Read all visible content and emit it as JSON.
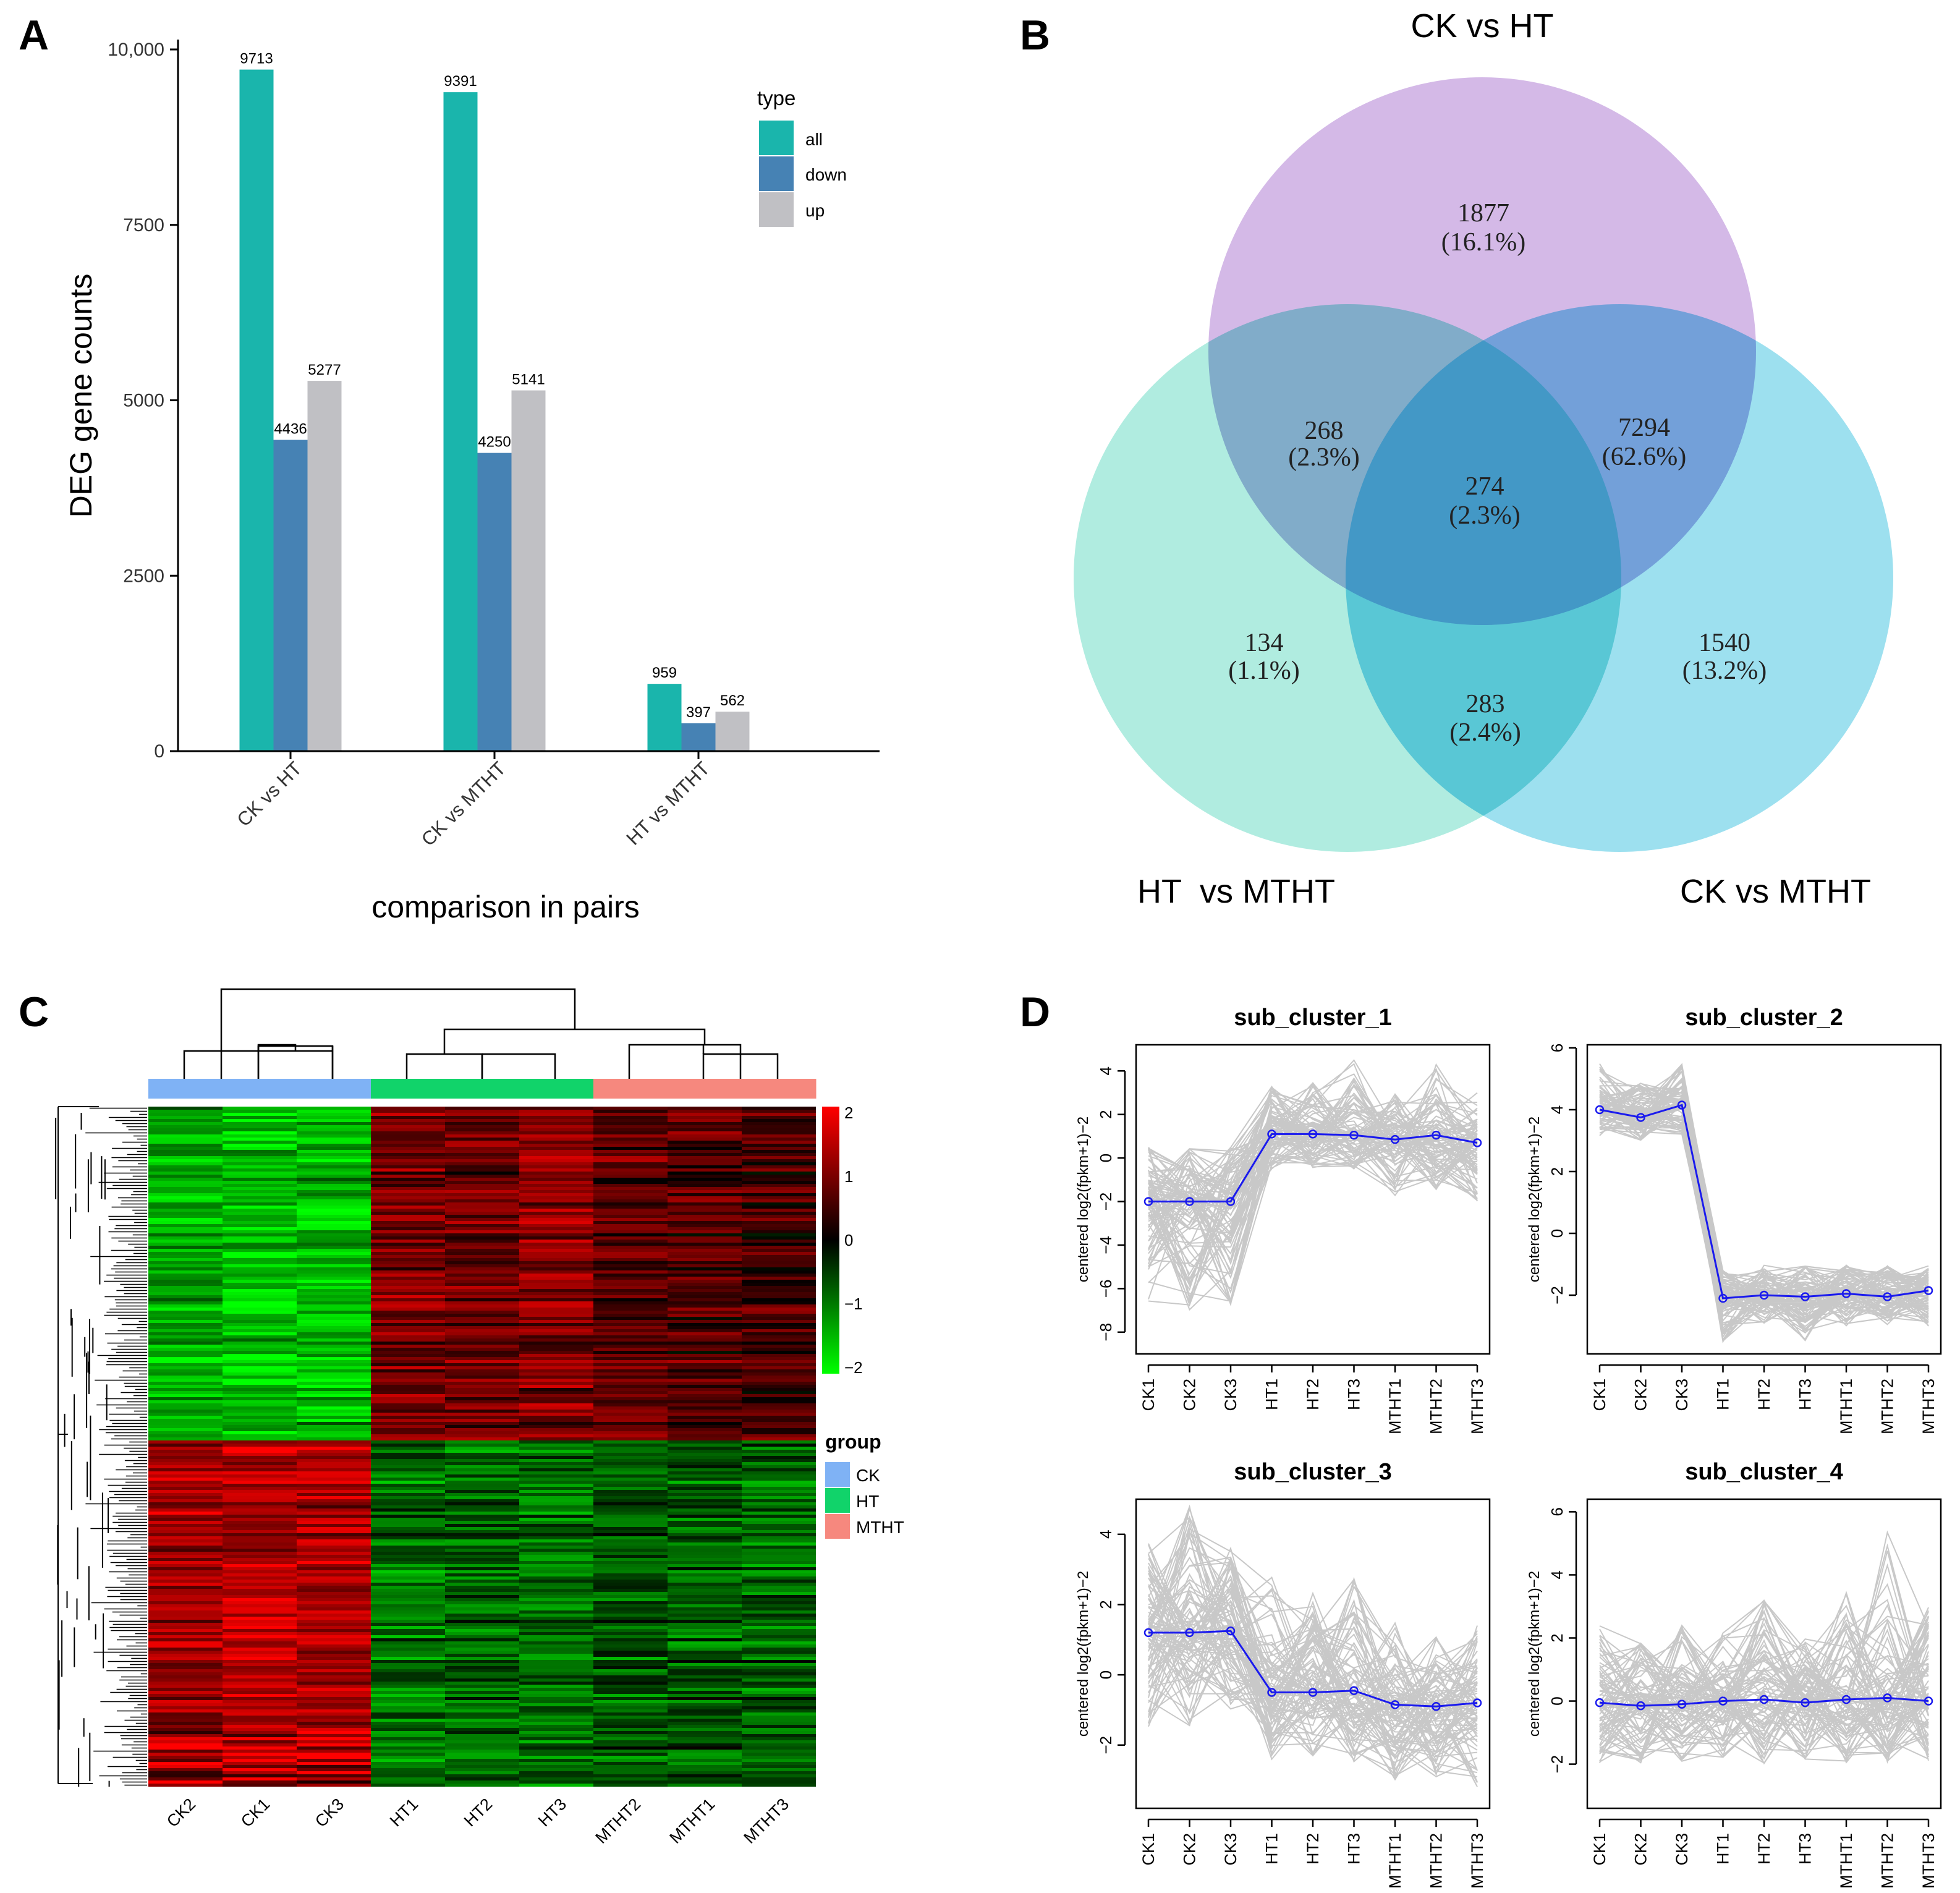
{
  "panels": {
    "a": "A",
    "b": "B",
    "c": "C",
    "d": "D"
  },
  "colors": {
    "all": "#1ab5ac",
    "down": "#4682b4",
    "up": "#c0c0c4",
    "ck_circle": "#b07fd3",
    "ht_mtht_circle": "#6fddc6",
    "ck_mtht_circle": "#4dc6e2",
    "ck": "#7fb2f5",
    "ht": "#11d36a",
    "mtht": "#f6887e",
    "mean_line": "#1a1aee",
    "profile": "#c8c8c8"
  },
  "chart_data": [
    {
      "type": "bar",
      "panel": "A",
      "title": "",
      "xlabel": "comparison in pairs",
      "ylabel": "DEG gene counts",
      "categories": [
        "CK vs HT",
        "CK vs MTHT",
        "HT vs MTHT"
      ],
      "series": [
        {
          "name": "all",
          "values": [
            9713,
            9391,
            959
          ]
        },
        {
          "name": "down",
          "values": [
            4436,
            4250,
            397
          ]
        },
        {
          "name": "up",
          "values": [
            5277,
            5141,
            562
          ]
        }
      ],
      "ylim": [
        0,
        10000
      ],
      "yticks": [
        0,
        2500,
        5000,
        7500,
        10000
      ],
      "ytick_labels": [
        "0",
        "2500",
        "5000",
        "7500",
        "10,000"
      ],
      "legend_title": "type",
      "legend": "top-right",
      "grid": false
    },
    {
      "type": "venn",
      "panel": "B",
      "sets": [
        "CK vs HT",
        "HT  vs MTHT",
        "CK vs MTHT"
      ],
      "regions": [
        {
          "id": "ck_ht_only",
          "count": "1877",
          "pct": "(16.1%)"
        },
        {
          "id": "ck_ht_and_ht_mtht",
          "count": "268",
          "pct": "(2.3%)"
        },
        {
          "id": "ck_ht_and_ck_mtht",
          "count": "7294",
          "pct": "(62.6%)"
        },
        {
          "id": "all_three",
          "count": "274",
          "pct": "(2.3%)"
        },
        {
          "id": "ht_mtht_only",
          "count": "134",
          "pct": "(1.1%)"
        },
        {
          "id": "ck_mtht_only",
          "count": "1540",
          "pct": "(13.2%)"
        },
        {
          "id": "ht_mtht_and_ck_mtht",
          "count": "283",
          "pct": "(2.4%)"
        }
      ]
    },
    {
      "type": "heatmap",
      "panel": "C",
      "columns": [
        "CK2",
        "CK1",
        "CK3",
        "HT1",
        "HT2",
        "HT3",
        "MTHT2",
        "MTHT1",
        "MTHT3"
      ],
      "column_groups": [
        "CK",
        "CK",
        "CK",
        "HT",
        "HT",
        "HT",
        "MTHT",
        "MTHT",
        "MTHT"
      ],
      "scale_ticks": [
        2,
        1,
        0,
        -1,
        -2
      ],
      "scale_labels": [
        "2",
        "1",
        "0",
        "−1",
        "−2"
      ],
      "group_legend_title": "group",
      "groups": [
        "CK",
        "HT",
        "MTHT"
      ],
      "row_blocks": [
        {
          "rows": "top",
          "values": [
            -1.3,
            -1.5,
            -1.4,
            0.9,
            0.8,
            1.0,
            0.7,
            0.6,
            0.5
          ]
        },
        {
          "rows": "bottom",
          "values": [
            1.2,
            1.4,
            1.3,
            -0.9,
            -0.8,
            -0.9,
            -0.7,
            -0.7,
            -0.8
          ]
        }
      ]
    },
    {
      "type": "line",
      "panel": "D",
      "ylabel": "centered log2(fpkm+1)−2",
      "x": [
        "CK1",
        "CK2",
        "CK3",
        "HT1",
        "HT2",
        "HT3",
        "MTHT1",
        "MTHT2",
        "MTHT3"
      ],
      "plots": [
        {
          "title": "sub_cluster_1",
          "mean": [
            -2.0,
            -2.0,
            -2.0,
            1.1,
            1.1,
            1.05,
            0.85,
            1.05,
            0.7
          ],
          "ylim": [
            -9.0,
            5.2
          ],
          "yticks": [
            4,
            2,
            0,
            -2,
            -4,
            -6,
            -8
          ],
          "ytick_labels": [
            "4",
            "2",
            "0",
            "−2",
            "−4",
            "−6",
            "−8"
          ],
          "spread": [
            [
              -7,
              0.5
            ],
            [
              -7,
              0.5
            ],
            [
              -7,
              0.5
            ],
            [
              -0.5,
              3.5
            ],
            [
              -0.5,
              3.5
            ],
            [
              -0.5,
              4.5
            ],
            [
              -2,
              3
            ],
            [
              -1.5,
              4.5
            ],
            [
              -2,
              3
            ]
          ]
        },
        {
          "title": "sub_cluster_2",
          "mean": [
            4.0,
            3.75,
            4.15,
            -2.1,
            -2.0,
            -2.05,
            -1.95,
            -2.05,
            -1.85
          ],
          "ylim": [
            -3.9,
            6.1
          ],
          "yticks": [
            6,
            4,
            2,
            0,
            -2
          ],
          "ytick_labels": [
            "6",
            "4",
            "2",
            "0",
            "−2"
          ],
          "spread": [
            [
              3.0,
              5.5
            ],
            [
              3.0,
              5.2
            ],
            [
              3.2,
              5.5
            ],
            [
              -3.5,
              -1.2
            ],
            [
              -3.0,
              -1.0
            ],
            [
              -3.5,
              -1.0
            ],
            [
              -3.0,
              -1.0
            ],
            [
              -3.0,
              -1.0
            ],
            [
              -3.0,
              -1.0
            ]
          ]
        },
        {
          "title": "sub_cluster_3",
          "mean": [
            1.2,
            1.2,
            1.25,
            -0.5,
            -0.5,
            -0.45,
            -0.85,
            -0.9,
            -0.8
          ],
          "ylim": [
            -3.8,
            5.0
          ],
          "yticks": [
            4,
            2,
            0,
            -2
          ],
          "ytick_labels": [
            "4",
            "2",
            "0",
            "−2"
          ],
          "spread": [
            [
              -1.5,
              3.8
            ],
            [
              -1.5,
              4.8
            ],
            [
              -1.0,
              3.8
            ],
            [
              -2.5,
              2.8
            ],
            [
              -2.5,
              2.5
            ],
            [
              -2.5,
              2.8
            ],
            [
              -3.0,
              1.5
            ],
            [
              -3.0,
              1.2
            ],
            [
              -3.2,
              1.5
            ]
          ]
        },
        {
          "title": "sub_cluster_4",
          "mean": [
            -0.05,
            -0.15,
            -0.1,
            0.0,
            0.05,
            -0.05,
            0.05,
            0.1,
            0.0
          ],
          "ylim": [
            -3.4,
            6.4
          ],
          "yticks": [
            6,
            4,
            2,
            0,
            -2
          ],
          "ytick_labels": [
            "6",
            "4",
            "2",
            "0",
            "−2"
          ],
          "spread": [
            [
              -2.0,
              2.8
            ],
            [
              -2.0,
              2.0
            ],
            [
              -2.0,
              2.5
            ],
            [
              -2.0,
              2.2
            ],
            [
              -2.0,
              3.2
            ],
            [
              -2.0,
              2.0
            ],
            [
              -2.0,
              3.5
            ],
            [
              -2.0,
              5.8
            ],
            [
              -2.0,
              3.0
            ]
          ]
        }
      ]
    }
  ]
}
